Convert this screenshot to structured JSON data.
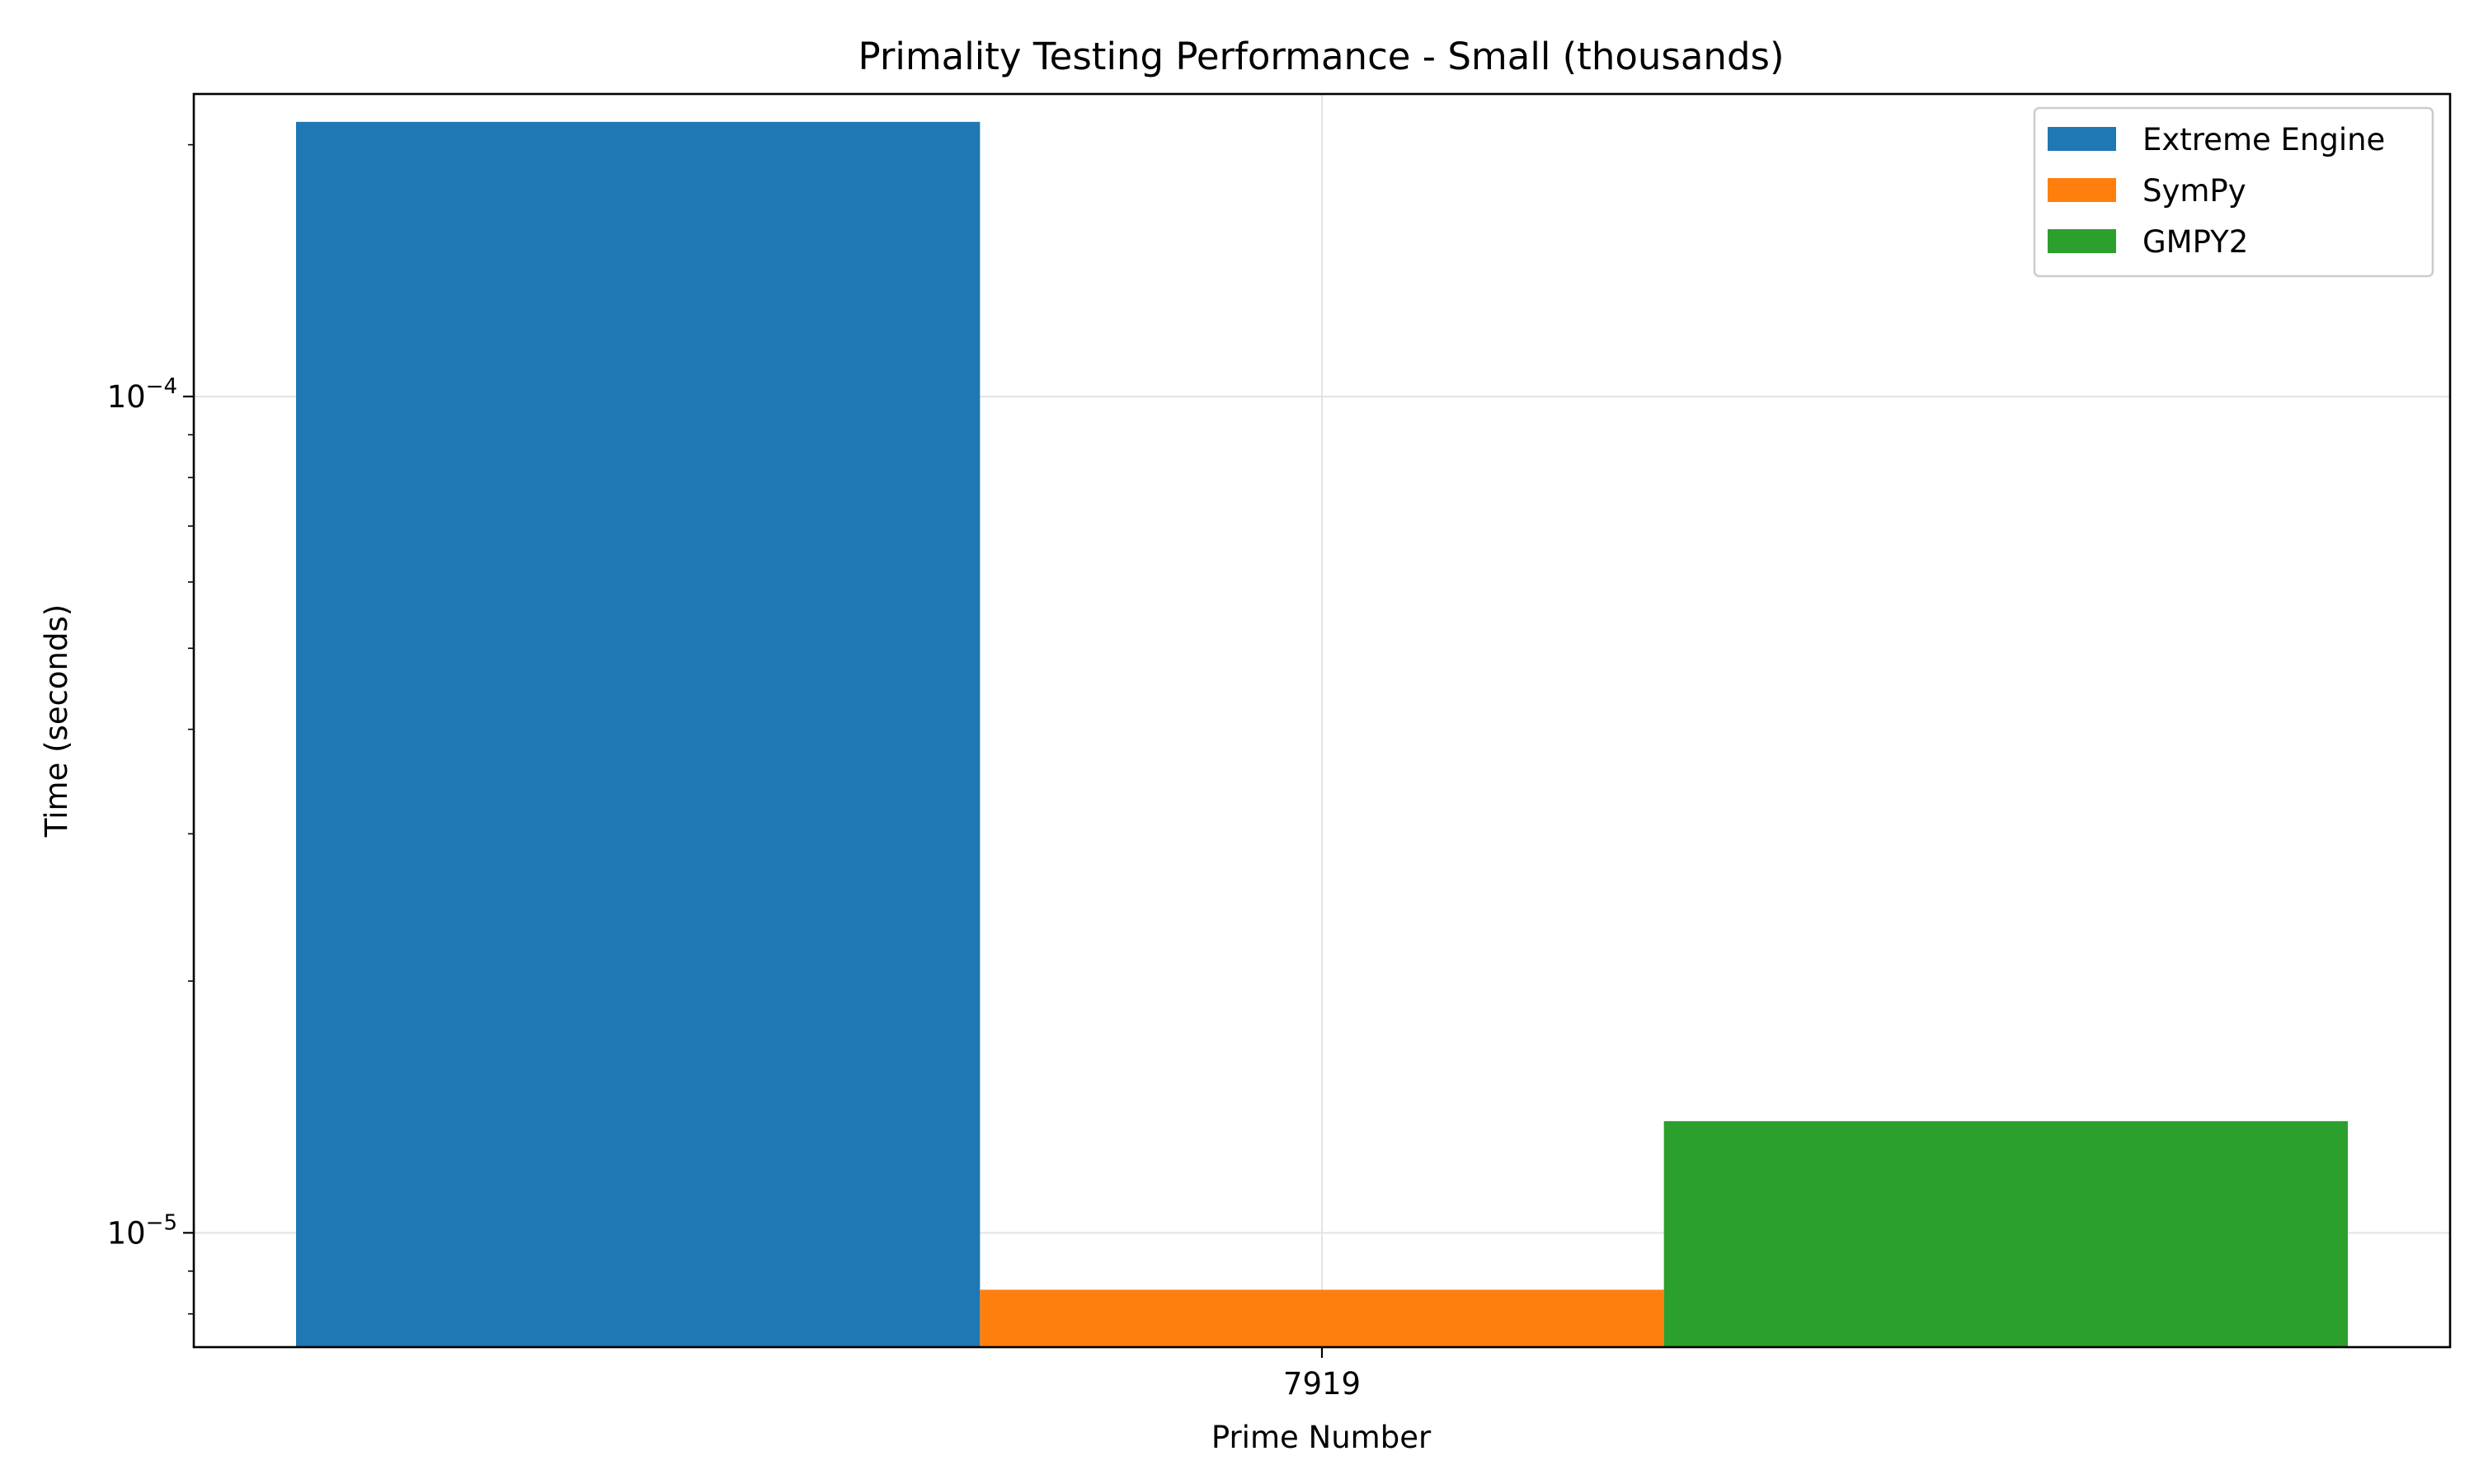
{
  "chart_data": {
    "type": "bar",
    "title": "Primality Testing Performance - Small (thousands)",
    "xlabel": "Prime Number",
    "ylabel": "Time (seconds)",
    "categories": [
      "7919"
    ],
    "y_scale": "log",
    "ylim": [
      7.3e-06,
      0.00023
    ],
    "y_major_ticks": [
      {
        "value": 1e-05,
        "base": "10",
        "exponent": "−5"
      },
      {
        "value": 0.0001,
        "base": "10",
        "exponent": "−4"
      }
    ],
    "grid": true,
    "legend_position": "top-right",
    "series": [
      {
        "name": "Extreme Engine",
        "color": "#1f77b4",
        "values": [
          0.000213
        ]
      },
      {
        "name": "SymPy",
        "color": "#ff7f0e",
        "values": [
          8.55e-06
        ]
      },
      {
        "name": "GMPY2",
        "color": "#2ca02c",
        "values": [
          1.36e-05
        ]
      }
    ]
  }
}
